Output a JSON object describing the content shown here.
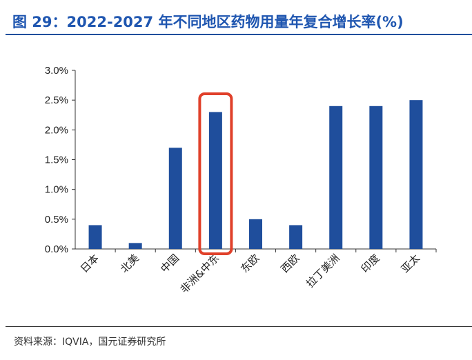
{
  "chart_data": {
    "type": "bar",
    "title": "图 29：2022-2027 年不同地区药物用量年复合增长率(%)",
    "categories": [
      "日本",
      "北美",
      "中国",
      "非洲&中东",
      "东欧",
      "西欧",
      "拉丁美洲",
      "印度",
      "亚太"
    ],
    "values": [
      0.4,
      0.1,
      1.7,
      2.3,
      0.5,
      0.4,
      2.4,
      2.4,
      2.5
    ],
    "unit": "%",
    "ylim": [
      0,
      3.0
    ],
    "yticks": [
      "0.0%",
      "0.5%",
      "1.0%",
      "1.5%",
      "2.0%",
      "2.5%",
      "3.0%"
    ],
    "ytick_values": [
      0,
      0.5,
      1.0,
      1.5,
      2.0,
      2.5,
      3.0
    ],
    "xlabel": "",
    "ylabel": "",
    "grid": false,
    "legend": "none",
    "highlighted_category": "非洲&中东"
  },
  "colors": {
    "bar": "#1f4e9c",
    "highlight": "#e0402a",
    "axis": "#333333"
  },
  "source": "资料来源：IQVIA，国元证券研究所"
}
